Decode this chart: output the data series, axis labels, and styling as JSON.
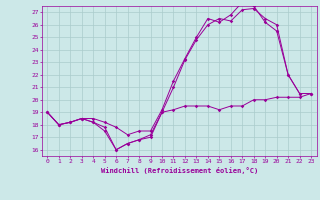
{
  "xlabel": "Windchill (Refroidissement éolien,°C)",
  "background_color": "#cce8e8",
  "grid_color": "#aacccc",
  "line_color": "#990099",
  "xlim": [
    -0.5,
    23.5
  ],
  "ylim": [
    15.5,
    27.5
  ],
  "xticks": [
    0,
    1,
    2,
    3,
    4,
    5,
    6,
    7,
    8,
    9,
    10,
    11,
    12,
    13,
    14,
    15,
    16,
    17,
    18,
    19,
    20,
    21,
    22,
    23
  ],
  "yticks": [
    16,
    17,
    18,
    19,
    20,
    21,
    22,
    23,
    24,
    25,
    26,
    27
  ],
  "line1_x": [
    0,
    1,
    2,
    3,
    4,
    5,
    6,
    7,
    8,
    9,
    10,
    11,
    12,
    13,
    14,
    15,
    16,
    17,
    18,
    19,
    20,
    21,
    22,
    23
  ],
  "line1_y": [
    19.0,
    18.0,
    18.2,
    18.5,
    18.2,
    17.5,
    16.0,
    16.5,
    16.8,
    17.0,
    19.0,
    21.0,
    23.2,
    24.8,
    26.0,
    26.5,
    26.3,
    27.2,
    27.3,
    26.5,
    26.0,
    22.0,
    20.5,
    20.5
  ],
  "line2_x": [
    0,
    1,
    2,
    3,
    4,
    5,
    6,
    7,
    8,
    9,
    10,
    11,
    12,
    13,
    14,
    15,
    16,
    17,
    18,
    19,
    20,
    21,
    22,
    23
  ],
  "line2_y": [
    19.0,
    18.0,
    18.2,
    18.5,
    18.5,
    18.2,
    17.8,
    17.2,
    17.5,
    17.5,
    19.2,
    21.5,
    23.3,
    25.0,
    26.5,
    26.2,
    26.8,
    27.8,
    27.5,
    26.2,
    25.5,
    22.0,
    20.5,
    20.5
  ],
  "line3_x": [
    0,
    1,
    2,
    3,
    4,
    5,
    6,
    7,
    8,
    9,
    10,
    11,
    12,
    13,
    14,
    15,
    16,
    17,
    18,
    19,
    20,
    21,
    22,
    23
  ],
  "line3_y": [
    19.0,
    18.0,
    18.2,
    18.5,
    18.2,
    17.8,
    16.0,
    16.5,
    16.8,
    17.2,
    19.0,
    19.2,
    19.5,
    19.5,
    19.5,
    19.2,
    19.5,
    19.5,
    20.0,
    20.0,
    20.2,
    20.2,
    20.2,
    20.5
  ]
}
